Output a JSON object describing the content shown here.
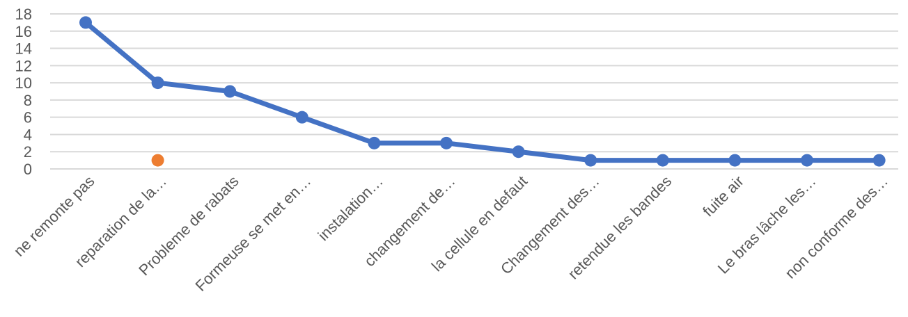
{
  "chart_data": {
    "type": "line",
    "categories": [
      "ne remonte pas",
      "reparation de la…",
      "Probleme de rabats",
      "Formeuse se met en…",
      "instalation…",
      "changement de…",
      "la cellule en defaut",
      "Changement des…",
      "retendue les bandes",
      "fuite air",
      "Le bras lâche les…",
      "non conforme des…"
    ],
    "series": [
      {
        "values": [
          17,
          10,
          9,
          6,
          3,
          3,
          2,
          1,
          1,
          1,
          1,
          1
        ],
        "color": "#4472c4"
      },
      {
        "values": [
          null,
          1,
          null,
          null,
          null,
          null,
          null,
          null,
          null,
          null,
          null,
          null
        ],
        "color": "#ed7d31"
      }
    ],
    "ylim": [
      0,
      18
    ],
    "yticks": [
      0,
      2,
      4,
      6,
      8,
      10,
      12,
      14,
      16,
      18
    ],
    "grid": true,
    "gridColor": "#d9d9d9"
  }
}
